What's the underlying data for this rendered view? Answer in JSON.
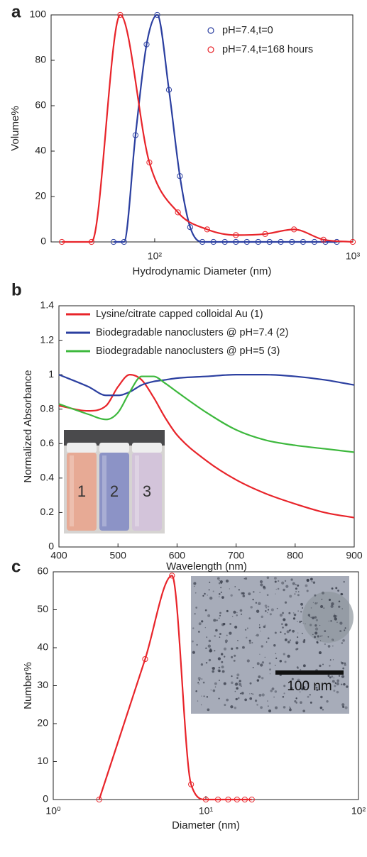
{
  "chart_data": [
    {
      "type": "line",
      "panel_label": "a",
      "xlabel": "Hydrodynamic Diameter (nm)",
      "ylabel": "Volume%",
      "xscale": "log",
      "xlim": [
        30,
        1000
      ],
      "ylim": [
        0,
        100
      ],
      "xticks": [
        {
          "value": 100,
          "label": "10²"
        },
        {
          "value": 1000,
          "label": "10³"
        }
      ],
      "yticks": [
        0,
        20,
        40,
        60,
        80,
        100
      ],
      "legend": "upper right",
      "series": [
        {
          "name": "pH=7.4,t=0",
          "color": "#2b3fa0",
          "marker": "circle",
          "x": [
            62,
            70,
            80,
            91,
            103,
            118,
            134,
            151,
            174,
            198,
            226,
            257,
            292,
            333,
            380,
            433,
            493,
            561,
            640,
            728,
            830
          ],
          "values": [
            0,
            0,
            47,
            87,
            100,
            67,
            29,
            6.5,
            0,
            0,
            0,
            0,
            0,
            0,
            0,
            0,
            0,
            0,
            0,
            0,
            0
          ]
        },
        {
          "name": "pH=7.4,t=168 hours",
          "color": "#e8242a",
          "marker": "circle",
          "x": [
            34,
            48,
            67,
            94,
            131,
            184,
            257,
            361,
            505,
            711,
            1000
          ],
          "values": [
            0,
            0,
            100,
            35,
            13,
            5.5,
            3,
            3.5,
            5.5,
            1,
            0
          ]
        }
      ]
    },
    {
      "type": "line",
      "panel_label": "b",
      "xlabel": "Wavelength (nm)",
      "ylabel": "Normalized Absorbance",
      "xlim": [
        400,
        900
      ],
      "ylim": [
        0,
        1.4
      ],
      "xticks": [
        400,
        500,
        600,
        700,
        800,
        900
      ],
      "yticks": [
        0,
        0.2,
        0.4,
        0.6,
        0.8,
        1,
        1.2,
        1.4
      ],
      "legend": "upper left",
      "annotations": [
        "1",
        "2",
        "3"
      ],
      "x": [
        400,
        450,
        480,
        500,
        520,
        540,
        560,
        580,
        600,
        650,
        700,
        750,
        800,
        850,
        900
      ],
      "series": [
        {
          "name": "Lysine/citrate capped colloidal Au (1)",
          "color": "#e8242a",
          "values": [
            0.82,
            0.79,
            0.82,
            0.93,
            1.0,
            0.97,
            0.87,
            0.75,
            0.65,
            0.5,
            0.39,
            0.31,
            0.25,
            0.2,
            0.17
          ]
        },
        {
          "name": "Biodegradable nanoclusters @ pH=7.4 (2)",
          "color": "#2b3fa0",
          "values": [
            1.0,
            0.93,
            0.88,
            0.88,
            0.9,
            0.94,
            0.96,
            0.97,
            0.98,
            0.99,
            1.0,
            1.0,
            0.99,
            0.97,
            0.94
          ]
        },
        {
          "name": "Biodegradable nanoclusters @ pH=5 (3)",
          "color": "#3db83d",
          "values": [
            0.83,
            0.77,
            0.74,
            0.78,
            0.9,
            0.99,
            0.99,
            0.95,
            0.9,
            0.78,
            0.68,
            0.62,
            0.59,
            0.57,
            0.55
          ]
        }
      ]
    },
    {
      "type": "line",
      "panel_label": "c",
      "xlabel": "Diameter (nm)",
      "ylabel": "Number%",
      "xscale": "log",
      "xlim": [
        1,
        100
      ],
      "ylim": [
        0,
        60
      ],
      "xticks": [
        {
          "value": 1,
          "label": "10⁰"
        },
        {
          "value": 10,
          "label": "10¹"
        },
        {
          "value": 100,
          "label": "10²"
        }
      ],
      "yticks": [
        0,
        10,
        20,
        30,
        40,
        50,
        60
      ],
      "annotations": [
        "100 nm"
      ],
      "series": [
        {
          "color": "#e8242a",
          "marker": "circle",
          "x": [
            2,
            4,
            6,
            8,
            10,
            12,
            14,
            16,
            18,
            20
          ],
          "values": [
            0,
            37,
            59,
            4,
            0,
            0,
            0,
            0,
            0,
            0
          ]
        }
      ]
    }
  ]
}
